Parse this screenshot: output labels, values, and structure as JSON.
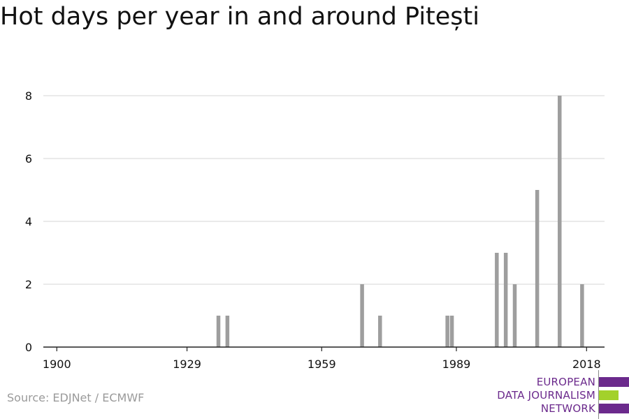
{
  "title": "Hot days per year in and around Pitești",
  "source": "Source: EDJNet / ECMWF",
  "logo": {
    "lines": [
      "EUROPEAN",
      "DATA JOURNALISM",
      "NETWORK"
    ],
    "text_color": "#6b2a8c",
    "bar_colors": [
      "#6b2a8c",
      "#a3d12b",
      "#6b2a8c"
    ]
  },
  "colors": {
    "bar": "#9e9e9e",
    "grid": "#dddddd",
    "axis": "#222222",
    "text": "#111111"
  },
  "chart_data": {
    "type": "bar",
    "title": "Hot days per year in and around Pitești",
    "xlabel": "",
    "ylabel": "",
    "xlim": [
      1897,
      2022
    ],
    "ylim": [
      0,
      8.6
    ],
    "x_ticks": [
      1900,
      1929,
      1959,
      1989,
      2018
    ],
    "y_ticks": [
      0,
      2,
      4,
      6,
      8
    ],
    "grid": true,
    "x": [
      1936,
      1938,
      1968,
      1972,
      1987,
      1988,
      1998,
      2000,
      2002,
      2007,
      2012,
      2017
    ],
    "values": [
      1,
      1,
      2,
      1,
      1,
      1,
      3,
      3,
      2,
      5,
      8,
      2
    ]
  }
}
